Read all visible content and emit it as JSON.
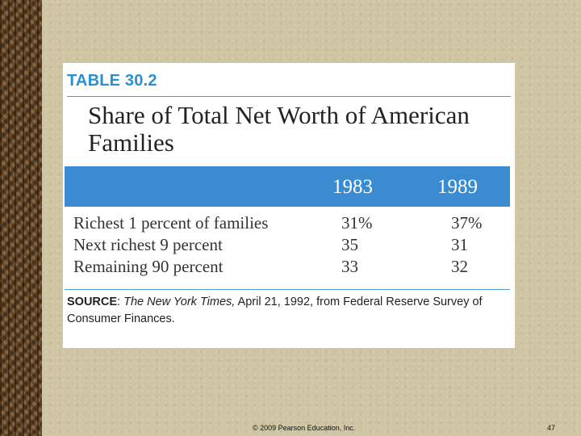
{
  "table": {
    "label": "TABLE 30.2",
    "title": "Share of Total Net Worth of American Families",
    "columns": [
      "1983",
      "1989"
    ],
    "rows": [
      {
        "label": "Richest 1 percent of families",
        "values": [
          "31%",
          "37%"
        ]
      },
      {
        "label": "Next richest 9 percent",
        "values": [
          "35",
          "31"
        ]
      },
      {
        "label": "Remaining 90 percent",
        "values": [
          "33",
          "32"
        ]
      }
    ],
    "source": {
      "label": "SOURCE",
      "publication": "The New York Times,",
      "text": "April 21, 1992, from Federal Reserve Survey of Consumer Finances."
    }
  },
  "footer": {
    "copyright": "© 2009 Pearson Education, Inc.",
    "page_number": "47"
  },
  "colors": {
    "accent_blue": "#3a8bd0",
    "label_blue": "#2b8fd0",
    "background": "#cfc5a4"
  }
}
